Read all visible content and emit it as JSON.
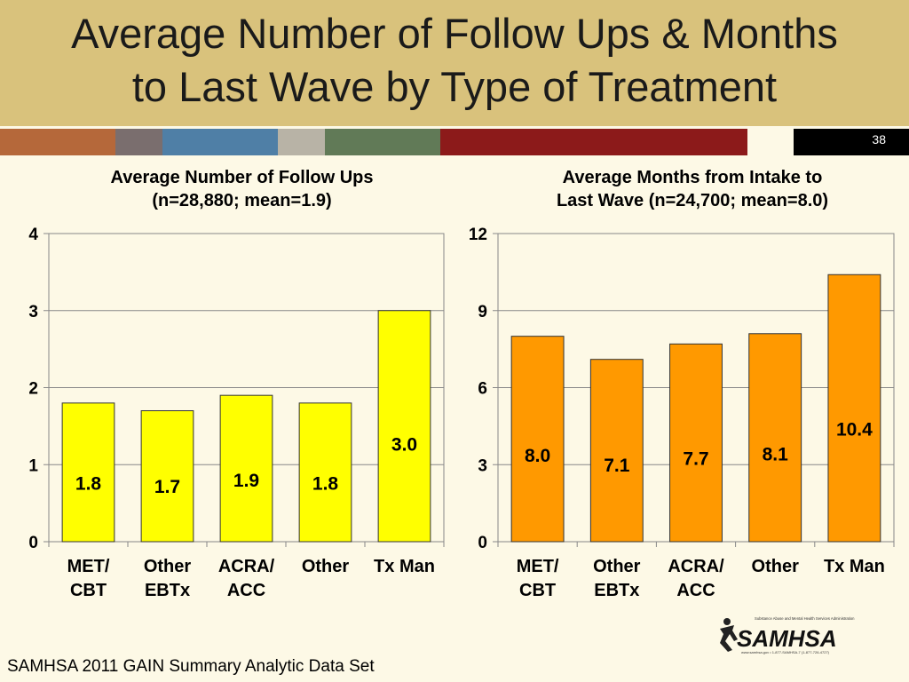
{
  "slide": {
    "title_line1": "Average Number of Follow Ups & Months",
    "title_line2": "to Last Wave by Type of Treatment",
    "number": "38",
    "footer": "SAMHSA 2011 GAIN Summary Analytic Data Set",
    "logo_text": "SAMHSA",
    "logo_tagline": "Substance Abuse and Mental Health Services Administration",
    "logo_contact": "www.samhsa.gov • 1-877-SAMHSA-7 (1-877-726-4727)"
  },
  "colors": {
    "header_bg": "#d9c27c",
    "slide_bg": "#fdf9e6",
    "stripe": [
      "#b5683a",
      "#7a6e6e",
      "#4f7fa6",
      "#b8b3a6",
      "#617a57",
      "#8c1a1a",
      "#fdf9e6",
      "#000000"
    ],
    "left_bars": "#ffff00",
    "right_bars": "#ff9900"
  },
  "chart_data": [
    {
      "type": "bar",
      "title_line1": "Average Number of Follow Ups",
      "title_line2": "(n=28,880; mean=1.9)",
      "categories": [
        [
          "MET/",
          "CBT"
        ],
        [
          "Other",
          "EBTx"
        ],
        [
          "ACRA/",
          "ACC"
        ],
        [
          "Other"
        ],
        [
          "Tx Man"
        ]
      ],
      "values": [
        1.8,
        1.7,
        1.9,
        1.8,
        3.0
      ],
      "labels": [
        "1.8",
        "1.7",
        "1.9",
        "1.8",
        "3.0"
      ],
      "ylim": [
        0,
        4
      ],
      "yticks": [
        0,
        1,
        2,
        3,
        4
      ],
      "grid": true,
      "bar_color": "#ffff00"
    },
    {
      "type": "bar",
      "title_line1": "Average Months from Intake to",
      "title_line2": "Last Wave (n=24,700; mean=8.0)",
      "categories": [
        [
          "MET/",
          "CBT"
        ],
        [
          "Other",
          "EBTx"
        ],
        [
          "ACRA/",
          "ACC"
        ],
        [
          "Other"
        ],
        [
          "Tx Man"
        ]
      ],
      "values": [
        8.0,
        7.1,
        7.7,
        8.1,
        10.4
      ],
      "labels": [
        "8.0",
        "7.1",
        "7.7",
        "8.1",
        "10.4"
      ],
      "ylim": [
        0,
        12
      ],
      "yticks": [
        0,
        3,
        6,
        9,
        12
      ],
      "grid": true,
      "bar_color": "#ff9900"
    }
  ]
}
